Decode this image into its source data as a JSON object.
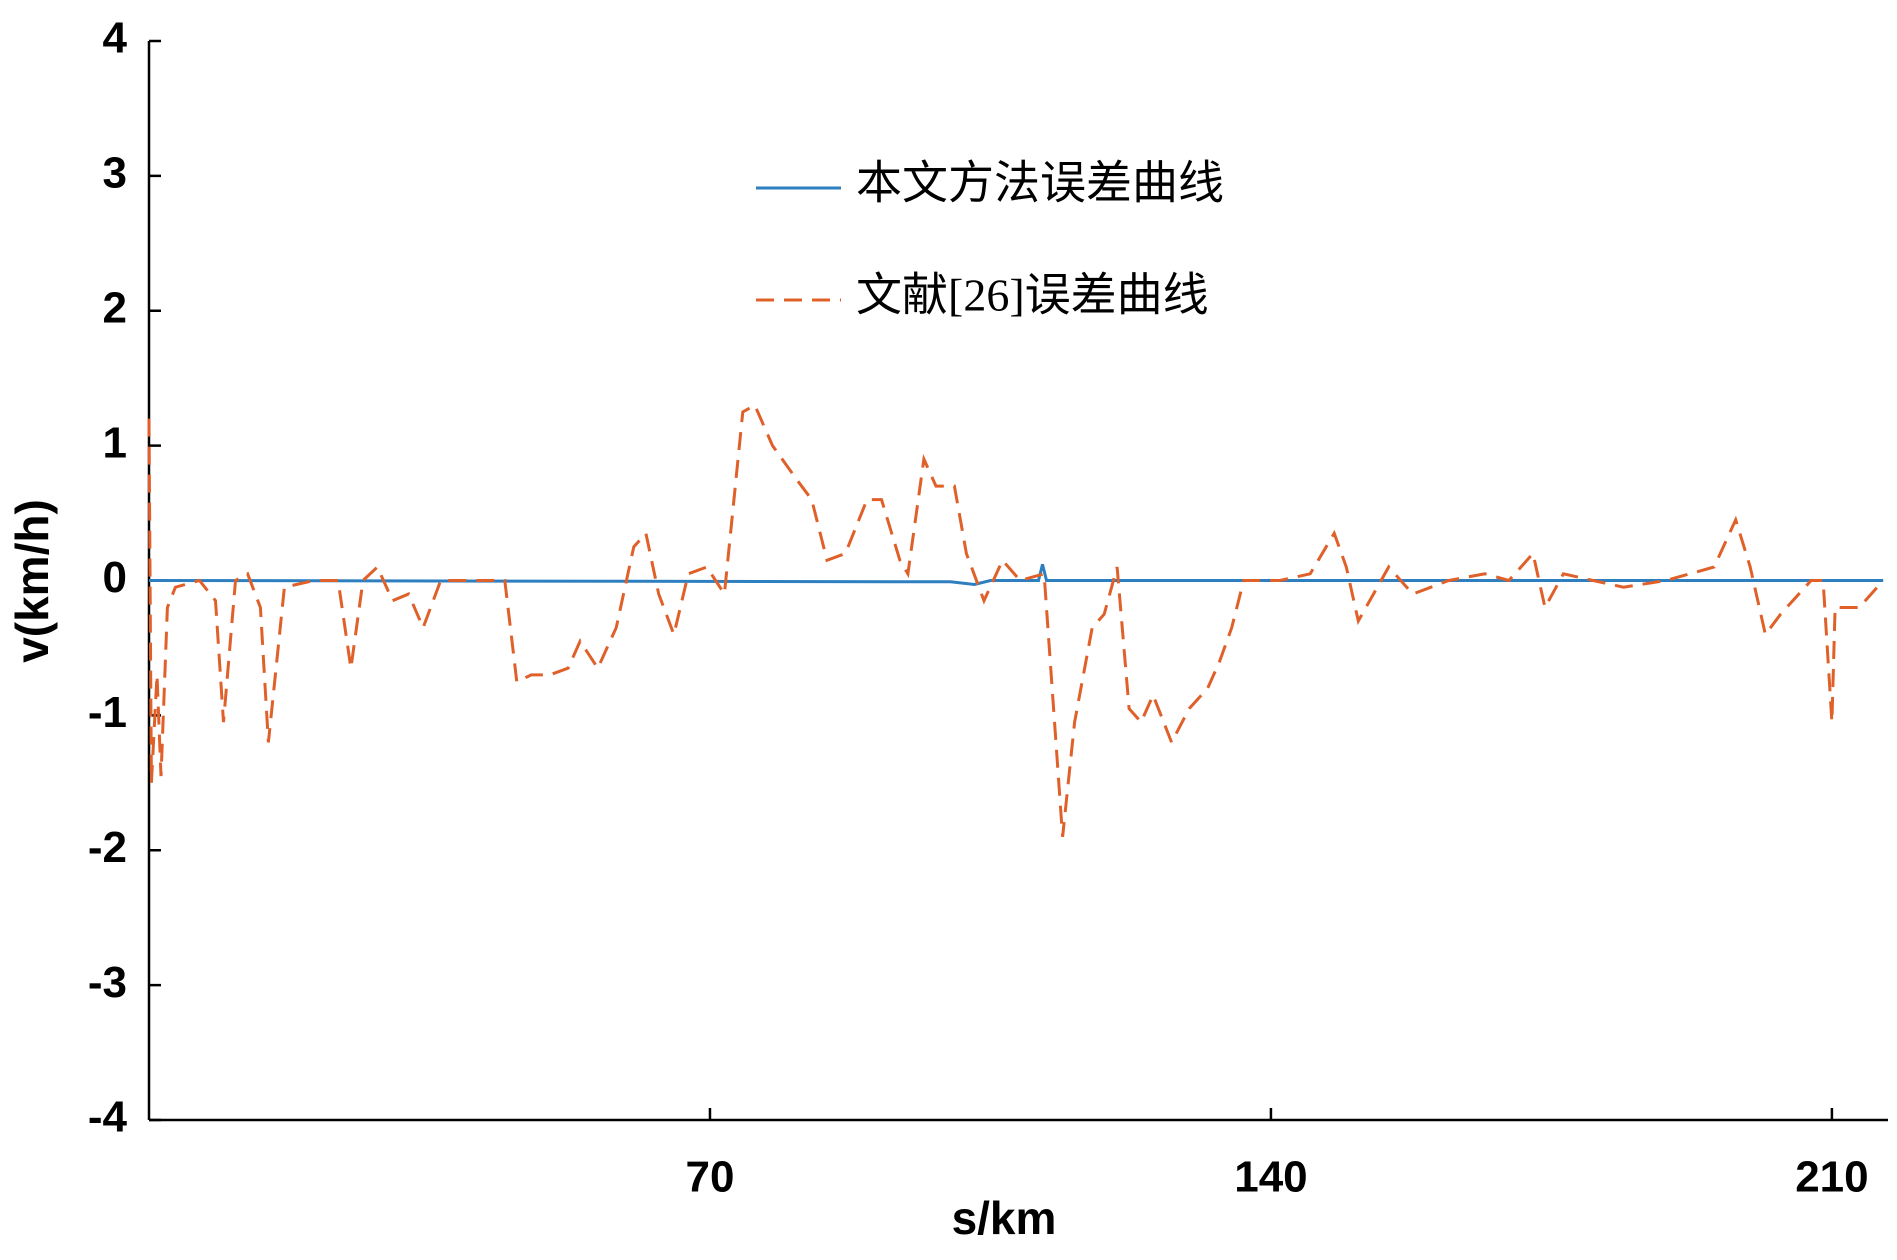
{
  "chart_data": {
    "type": "line",
    "xlabel": "s/km",
    "ylabel": "v(km/h)",
    "xlim": [
      0,
      217
    ],
    "ylim": [
      -4,
      4
    ],
    "xticks": [
      70,
      140,
      210
    ],
    "yticks": [
      -4,
      -3,
      -2,
      -1,
      0,
      1,
      2,
      3,
      4
    ],
    "series": [
      {
        "name": "本文方法误差曲线",
        "color": "#2e7fbf",
        "dash": "solid",
        "x": [
          0,
          100,
          103,
          105,
          111,
          111.5,
          112,
          216.4
        ],
        "values": [
          0,
          -0.01,
          -0.03,
          0,
          0,
          0.12,
          0,
          0
        ]
      },
      {
        "name": "文献[26]误差曲线",
        "color": "#e0602a",
        "dash": "dashed",
        "x": [
          0,
          0.3,
          1,
          1.5,
          2.3,
          3.3,
          6.3,
          8.3,
          9.3,
          10.8,
          12.3,
          13.9,
          14.9,
          16.9,
          20.6,
          23.6,
          25.2,
          26.7,
          28.5,
          30.4,
          32.4,
          34.2,
          36.4,
          41.7,
          44.4,
          45.9,
          47.7,
          50,
          52.3,
          53.8,
          56,
          58.3,
          60.5,
          62,
          63.6,
          65.5,
          67.3,
          69.6,
          71.8,
          74.1,
          75.6,
          77.8,
          80.8,
          82.7,
          84.6,
          86.9,
          89.6,
          91.4,
          93.7,
          94.7,
          96.7,
          98.2,
          100.5,
          102,
          104.2,
          106.5,
          108.7,
          111.7,
          114,
          115.5,
          117.7,
          119.2,
          120.8,
          122.3,
          123.8,
          125.3,
          127.6,
          129.8,
          132.1,
          133.6,
          135.1,
          136.6,
          141.1,
          144.9,
          147.9,
          149.4,
          150.9,
          154.7,
          157.7,
          162.2,
          166.7,
          169.7,
          172.7,
          174.2,
          176.5,
          180.2,
          184,
          189.3,
          195.3,
          198,
          199.8,
          201.7,
          203.6,
          207.4,
          208.9,
          210,
          210.4,
          213.4,
          216.4
        ],
        "values": [
          1.2,
          -1.5,
          -0.7,
          -1.45,
          -0.2,
          -0.05,
          0,
          -0.15,
          -1.05,
          0,
          0.05,
          -0.2,
          -1.2,
          -0.05,
          0,
          0,
          -0.65,
          0,
          0.1,
          -0.15,
          -0.1,
          -0.35,
          0,
          0,
          0,
          -0.75,
          -0.7,
          -0.7,
          -0.65,
          -0.45,
          -0.65,
          -0.35,
          0.25,
          0.35,
          -0.1,
          -0.4,
          0.05,
          0.1,
          -0.1,
          1.25,
          1.3,
          1.0,
          0.75,
          0.6,
          0.15,
          0.2,
          0.6,
          0.6,
          0.15,
          0.05,
          0.9,
          0.7,
          0.7,
          0.2,
          -0.15,
          0.15,
          0,
          0.05,
          -1.9,
          -1.05,
          -0.35,
          -0.25,
          0.1,
          -0.95,
          -1.05,
          -0.85,
          -1.2,
          -0.95,
          -0.8,
          -0.6,
          -0.35,
          0,
          0,
          0.05,
          0.35,
          0.1,
          -0.3,
          0.1,
          -0.1,
          0,
          0.05,
          0,
          0.2,
          -0.2,
          0.05,
          0,
          -0.05,
          0,
          0.1,
          0.45,
          0.1,
          -0.4,
          -0.25,
          0,
          0,
          -1.05,
          -0.2,
          -0.2,
          0
        ]
      }
    ]
  }
}
